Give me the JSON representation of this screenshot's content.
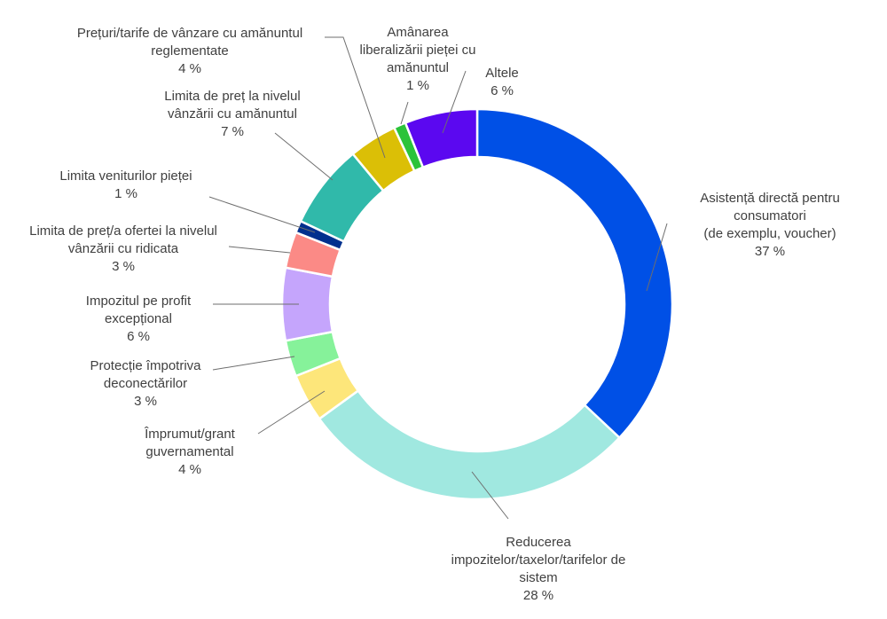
{
  "chart_data": {
    "type": "pie",
    "donut": true,
    "title": "",
    "legend": "none",
    "slices": [
      {
        "label_lines": [
          "Asistență directă pentru",
          "consumatori",
          "(de exemplu, voucher)"
        ],
        "value": 37,
        "value_text": "37 %",
        "color": "#0050e6"
      },
      {
        "label_lines": [
          "Reducerea",
          "impozitelor/taxelor/tarifelor de",
          "sistem"
        ],
        "value": 28,
        "value_text": "28 %",
        "color": "#a0e8e0"
      },
      {
        "label_lines": [
          "Împrumut/grant",
          "guvernamental"
        ],
        "value": 4,
        "value_text": "4 %",
        "color": "#fde67a"
      },
      {
        "label_lines": [
          "Protecție împotriva",
          "deconectărilor"
        ],
        "value": 3,
        "value_text": "3 %",
        "color": "#86f29a"
      },
      {
        "label_lines": [
          "Impozitul pe profit",
          "excepțional"
        ],
        "value": 6,
        "value_text": "6 %",
        "color": "#c5a5fc"
      },
      {
        "label_lines": [
          "Limita de preț/a ofertei la nivelul",
          "vânzării cu ridicata"
        ],
        "value": 3,
        "value_text": "3 %",
        "color": "#fb8a86"
      },
      {
        "label_lines": [
          "Limita veniturilor pieței"
        ],
        "value": 1,
        "value_text": "1 %",
        "color": "#00308e"
      },
      {
        "label_lines": [
          "Limita de preț la nivelul",
          "vânzării cu amănuntul"
        ],
        "value": 7,
        "value_text": "7 %",
        "color": "#30b9aa"
      },
      {
        "label_lines": [
          "Prețuri/tarife de vânzare cu amănuntul",
          "reglementate"
        ],
        "value": 4,
        "value_text": "4 %",
        "color": "#dbbf06"
      },
      {
        "label_lines": [
          "Amânarea",
          "liberalizării pieței cu",
          "amănuntul"
        ],
        "value": 1,
        "value_text": "1 %",
        "color": "#2bc33a"
      },
      {
        "label_lines": [
          "Altele"
        ],
        "value": 6,
        "value_text": "6 %",
        "color": "#5b08f0"
      }
    ]
  }
}
